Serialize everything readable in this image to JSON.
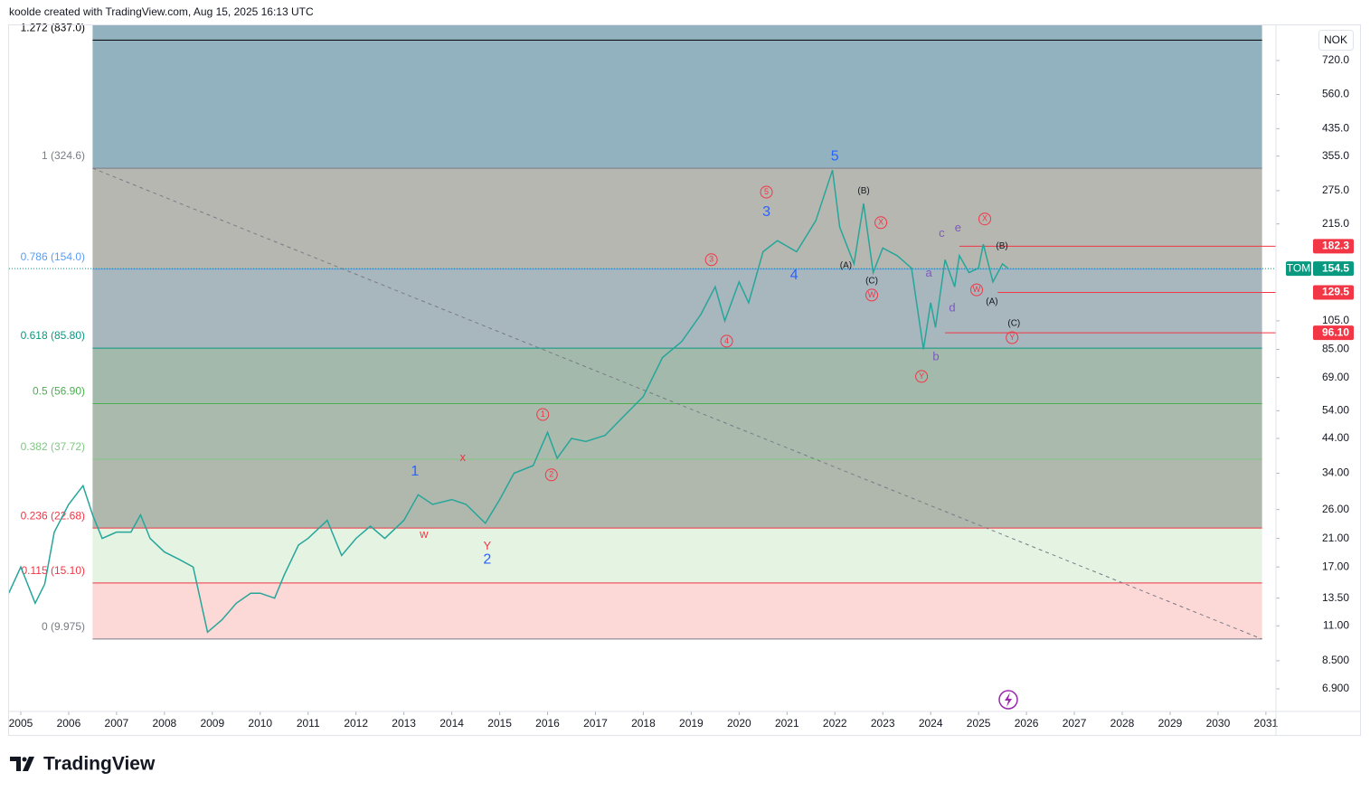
{
  "header": "koolde created with TradingView.com, Aug 15, 2025 16:13 UTC",
  "currency": "NOK",
  "brand": "TradingView",
  "chart_data": {
    "type": "line",
    "color": "#26a69a",
    "log_scale": true,
    "xlim": [
      2004.755,
      2031.21
    ],
    "ylim": [
      5.84,
      934
    ],
    "xticks": [
      2005,
      2006,
      2007,
      2008,
      2009,
      2010,
      2011,
      2012,
      2013,
      2014,
      2015,
      2016,
      2017,
      2018,
      2019,
      2020,
      2021,
      2022,
      2023,
      2024,
      2025,
      2026,
      2027,
      2028,
      2029,
      2030,
      2031
    ],
    "yticks": [
      {
        "value": 6.9,
        "label": "6.900"
      },
      {
        "value": 8.5,
        "label": "8.500"
      },
      {
        "value": 11,
        "label": "11.00"
      },
      {
        "value": 13.5,
        "label": "13.50"
      },
      {
        "value": 17,
        "label": "17.00"
      },
      {
        "value": 21,
        "label": "21.00"
      },
      {
        "value": 26,
        "label": "26.00"
      },
      {
        "value": 34,
        "label": "34.00"
      },
      {
        "value": 44,
        "label": "44.00"
      },
      {
        "value": 54,
        "label": "54.00"
      },
      {
        "value": 69,
        "label": "69.00"
      },
      {
        "value": 85,
        "label": "85.00"
      },
      {
        "value": 105,
        "label": "105.0"
      },
      {
        "value": 215,
        "label": "215.0"
      },
      {
        "value": 275,
        "label": "275.0"
      },
      {
        "value": 355,
        "label": "355.0"
      },
      {
        "value": 435,
        "label": "435.0"
      },
      {
        "value": 560,
        "label": "560.0"
      },
      {
        "value": 720,
        "label": "720.0"
      }
    ],
    "x": [
      2004.75,
      2005.0,
      2005.3,
      2005.5,
      2005.7,
      2006.0,
      2006.3,
      2006.5,
      2006.7,
      2007.0,
      2007.3,
      2007.5,
      2007.7,
      2008.0,
      2008.3,
      2008.6,
      2008.9,
      2009.2,
      2009.5,
      2009.8,
      2010.0,
      2010.3,
      2010.5,
      2010.8,
      2011.0,
      2011.4,
      2011.7,
      2012.0,
      2012.3,
      2012.6,
      2013.0,
      2013.3,
      2013.6,
      2014.0,
      2014.3,
      2014.7,
      2015.0,
      2015.3,
      2015.7,
      2016.0,
      2016.2,
      2016.5,
      2016.8,
      2017.2,
      2017.6,
      2018.0,
      2018.4,
      2018.8,
      2019.2,
      2019.5,
      2019.7,
      2020.0,
      2020.2,
      2020.5,
      2020.8,
      2021.2,
      2021.6,
      2021.95,
      2022.1,
      2022.4,
      2022.6,
      2022.8,
      2023.0,
      2023.3,
      2023.6,
      2023.85,
      2024.0,
      2024.1,
      2024.3,
      2024.5,
      2024.6,
      2024.8,
      2025.0,
      2025.1,
      2025.3,
      2025.5,
      2025.62
    ],
    "values": [
      14,
      17,
      13,
      15,
      22,
      27,
      31,
      25,
      21,
      22,
      22,
      25,
      21,
      19,
      18,
      17,
      10.5,
      11.5,
      13,
      14,
      14,
      13.5,
      16,
      20,
      21,
      24,
      18.5,
      21,
      23,
      21,
      24,
      29,
      27,
      28,
      27,
      23.5,
      28,
      34,
      36,
      46,
      38,
      44,
      43,
      45,
      52,
      60,
      80,
      90,
      110,
      135,
      105,
      140,
      120,
      175,
      190,
      175,
      220,
      320,
      210,
      160,
      250,
      150,
      180,
      170,
      155,
      85,
      120,
      100,
      165,
      135,
      170,
      150,
      155,
      185,
      140,
      160,
      154.5
    ],
    "fib_range": [
      2006.5,
      2030.92
    ],
    "fib_levels": [
      {
        "label": "1.272 (837.0)",
        "value": 837,
        "color": "#000000",
        "fill": "#93b2bf"
      },
      {
        "label": "1 (324.6)",
        "value": 324.6,
        "color": "#787b86",
        "fill": "#b7b7b1"
      },
      {
        "label": "0.786 (154.0)",
        "value": 154,
        "color": "#5b9cf6",
        "fill": "#a8b6bd"
      },
      {
        "label": "0.618 (85.80)",
        "value": 85.8,
        "color": "#089981",
        "fill": "#a3b9ab"
      },
      {
        "label": "0.5 (56.90)",
        "value": 56.9,
        "color": "#4caf50",
        "fill": "#aabaad"
      },
      {
        "label": "0.382 (37.72)",
        "value": 37.72,
        "color": "#81c784",
        "fill": "#b0b8ad"
      },
      {
        "label": "0.236 (22.68)",
        "value": 22.68,
        "color": "#f23645",
        "fill": "#e5f3e3"
      },
      {
        "label": "0.115 (15.10)",
        "value": 15.1,
        "color": "#f23645",
        "fill": "#fcd8d6"
      },
      {
        "label": "0 (9.975)",
        "value": 9.975,
        "color": "#787b86"
      }
    ],
    "price_lines": [
      {
        "value": 182.3,
        "start": 2024.6
      },
      {
        "value": 129.5,
        "start": 2025.4
      },
      {
        "value": 96.1,
        "label": "96.10",
        "start": 2024.3
      }
    ],
    "last_price": {
      "ticker": "TOM",
      "value": 154.5
    },
    "annotations": [
      {
        "text": "1",
        "x": 2013.23,
        "y": 34.4,
        "color": "#2962ff"
      },
      {
        "text": "2",
        "x": 2014.74,
        "y": 17.9,
        "color": "#2962ff"
      },
      {
        "text": "3",
        "x": 2020.57,
        "y": 234,
        "color": "#2962ff"
      },
      {
        "text": "4",
        "x": 2021.15,
        "y": 147,
        "color": "#2962ff"
      },
      {
        "text": "5",
        "x": 2022.0,
        "y": 354,
        "color": "#2962ff"
      },
      {
        "text": "1",
        "x": 2015.9,
        "y": 52.5,
        "color": "#f23645",
        "circled": true
      },
      {
        "text": "2",
        "x": 2016.08,
        "y": 33.6,
        "color": "#f23645",
        "circled": true
      },
      {
        "text": "3",
        "x": 2019.42,
        "y": 165,
        "color": "#f23645",
        "circled": true
      },
      {
        "text": "4",
        "x": 2019.74,
        "y": 90.3,
        "color": "#f23645",
        "circled": true
      },
      {
        "text": "5",
        "x": 2020.57,
        "y": 272,
        "color": "#f23645",
        "circled": true
      },
      {
        "text": "w",
        "x": 2013.42,
        "y": 21.6,
        "color": "#f23645"
      },
      {
        "text": "x",
        "x": 2014.23,
        "y": 38.1,
        "color": "#f23645"
      },
      {
        "text": "Y",
        "x": 2014.74,
        "y": 19.8,
        "color": "#f23645"
      },
      {
        "text": "(B)",
        "x": 2022.6,
        "y": 274,
        "color": "#131722"
      },
      {
        "text": "(A)",
        "x": 2022.23,
        "y": 158,
        "color": "#131722"
      },
      {
        "text": "(C)",
        "x": 2022.77,
        "y": 141,
        "color": "#131722"
      },
      {
        "text": "W",
        "x": 2022.77,
        "y": 127,
        "color": "#f23645",
        "circled": true
      },
      {
        "text": "X",
        "x": 2022.96,
        "y": 217,
        "color": "#f23645",
        "circled": true
      },
      {
        "text": "a",
        "x": 2023.96,
        "y": 149,
        "color": "#7e57c2"
      },
      {
        "text": "b",
        "x": 2024.11,
        "y": 80.2,
        "color": "#7e57c2"
      },
      {
        "text": "c",
        "x": 2024.23,
        "y": 200,
        "color": "#7e57c2"
      },
      {
        "text": "d",
        "x": 2024.45,
        "y": 115,
        "color": "#7e57c2"
      },
      {
        "text": "e",
        "x": 2024.57,
        "y": 208,
        "color": "#7e57c2"
      },
      {
        "text": "Y",
        "x": 2023.81,
        "y": 69.6,
        "color": "#f23645",
        "circled": true
      },
      {
        "text": "X",
        "x": 2025.13,
        "y": 223,
        "color": "#f23645",
        "circled": true
      },
      {
        "text": "(B)",
        "x": 2025.49,
        "y": 182,
        "color": "#131722"
      },
      {
        "text": "W",
        "x": 2024.96,
        "y": 132,
        "color": "#f23645",
        "circled": true
      },
      {
        "text": "(A)",
        "x": 2025.28,
        "y": 121,
        "color": "#131722"
      },
      {
        "text": "(C)",
        "x": 2025.74,
        "y": 103,
        "color": "#131722"
      },
      {
        "text": "Y",
        "x": 2025.7,
        "y": 92.7,
        "color": "#f23645",
        "circled": true
      }
    ]
  }
}
